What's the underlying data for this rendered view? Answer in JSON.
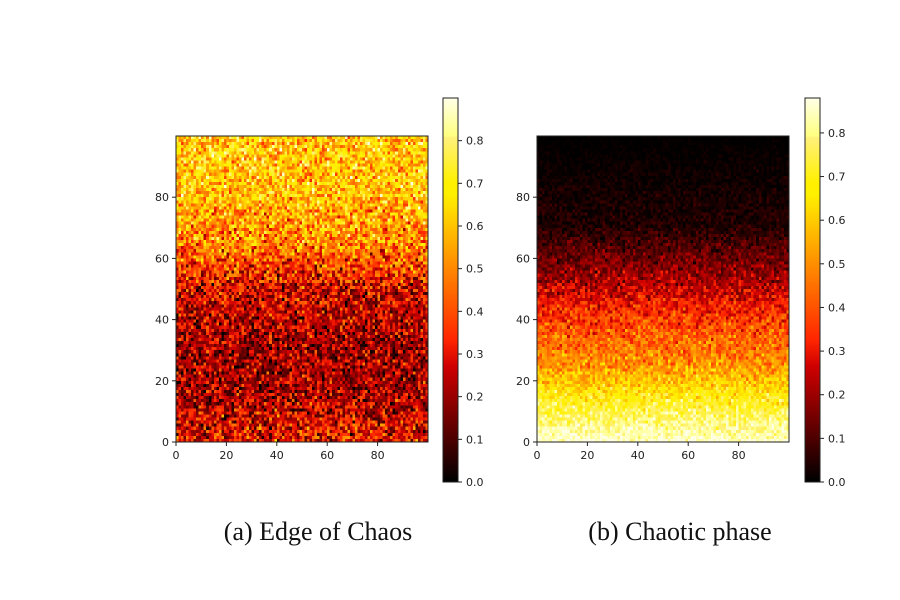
{
  "chart_data": [
    {
      "type": "heatmap",
      "panel": "a",
      "caption": "(a) Edge of Chaos",
      "grid": {
        "rows": 100,
        "cols": 100
      },
      "x_ticks": [
        0,
        20,
        40,
        60,
        80
      ],
      "y_ticks": [
        0,
        20,
        40,
        60,
        80
      ],
      "xlim": [
        0,
        100
      ],
      "ylim": [
        0,
        100
      ],
      "colormap": "hot (matplotlib afmhot-like)",
      "colorbar": {
        "min": 0.0,
        "max": 0.9,
        "ticks": [
          "0.0",
          "0.1",
          "0.2",
          "0.3",
          "0.4",
          "0.5",
          "0.6",
          "0.7",
          "0.8"
        ]
      },
      "row_profile": [
        {
          "row": 0,
          "mean": 0.32,
          "spread": 0.22
        },
        {
          "row": 15,
          "mean": 0.22,
          "spread": 0.18
        },
        {
          "row": 30,
          "mean": 0.2,
          "spread": 0.18
        },
        {
          "row": 50,
          "mean": 0.28,
          "spread": 0.2
        },
        {
          "row": 65,
          "mean": 0.5,
          "spread": 0.22
        },
        {
          "row": 80,
          "mean": 0.6,
          "spread": 0.2
        },
        {
          "row": 99,
          "mean": 0.62,
          "spread": 0.2
        }
      ]
    },
    {
      "type": "heatmap",
      "panel": "b",
      "caption": "(b) Chaotic phase",
      "grid": {
        "rows": 100,
        "cols": 100
      },
      "x_ticks": [
        0,
        20,
        40,
        60,
        80
      ],
      "y_ticks": [
        0,
        20,
        40,
        60,
        80
      ],
      "xlim": [
        0,
        100
      ],
      "ylim": [
        0,
        100
      ],
      "colormap": "hot (matplotlib afmhot-like)",
      "colorbar": {
        "min": 0.0,
        "max": 0.88,
        "ticks": [
          "0.0",
          "0.1",
          "0.2",
          "0.3",
          "0.4",
          "0.5",
          "0.6",
          "0.7",
          "0.8"
        ]
      },
      "row_profile": [
        {
          "row": 0,
          "mean": 0.86,
          "spread": 0.06
        },
        {
          "row": 12,
          "mean": 0.72,
          "spread": 0.1
        },
        {
          "row": 25,
          "mean": 0.5,
          "spread": 0.12
        },
        {
          "row": 40,
          "mean": 0.36,
          "spread": 0.12
        },
        {
          "row": 55,
          "mean": 0.18,
          "spread": 0.1
        },
        {
          "row": 70,
          "mean": 0.04,
          "spread": 0.05
        },
        {
          "row": 99,
          "mean": 0.0,
          "spread": 0.01
        }
      ]
    }
  ]
}
